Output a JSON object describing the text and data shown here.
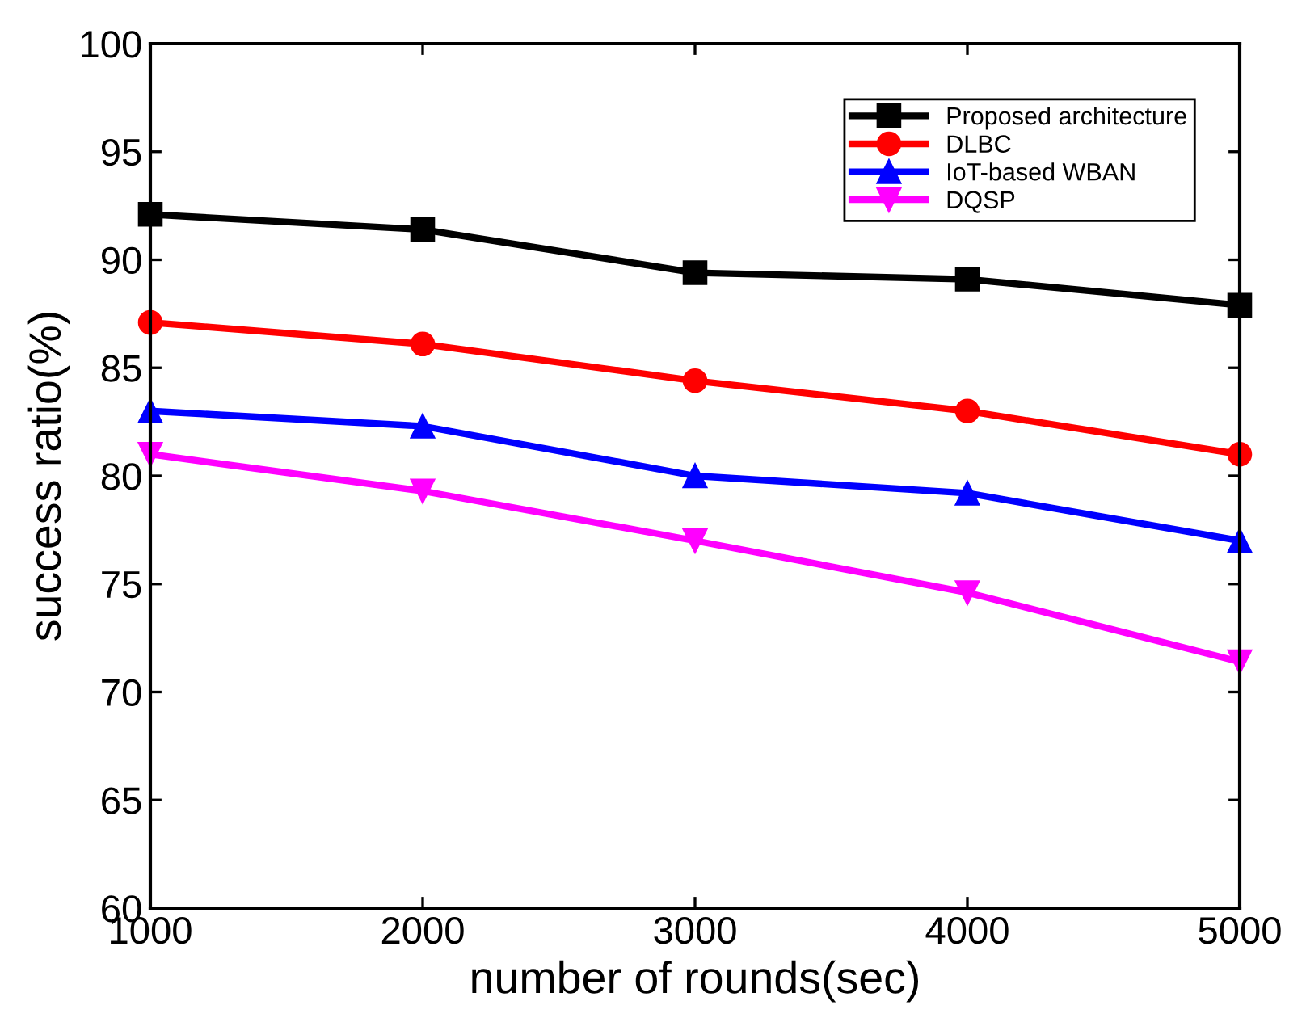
{
  "chart_data": {
    "type": "line",
    "xlabel": "number of rounds(sec)",
    "ylabel": "success ratio(%)",
    "x": [
      1000,
      2000,
      3000,
      4000,
      5000
    ],
    "xlim": [
      1000,
      5000
    ],
    "xticks": [
      1000,
      2000,
      3000,
      4000,
      5000
    ],
    "ylim": [
      60,
      100
    ],
    "yticks": [
      60,
      65,
      70,
      75,
      80,
      85,
      90,
      95,
      100
    ],
    "grid": false,
    "legend": "top right",
    "line_style": "solid",
    "series": [
      {
        "name": "Proposed architecture",
        "color": "#000000",
        "marker": "square",
        "values": [
          92.1,
          91.4,
          89.4,
          89.1,
          87.9
        ]
      },
      {
        "name": "DLBC",
        "color": "#ff0000",
        "marker": "circle",
        "values": [
          87.1,
          86.1,
          84.4,
          83.0,
          81.0
        ]
      },
      {
        "name": "IoT-based WBAN",
        "color": "#0000ff",
        "marker": "triangle",
        "values": [
          83.0,
          82.3,
          80.0,
          79.2,
          77.0
        ]
      },
      {
        "name": "DQSP",
        "color": "#ff00ff",
        "marker": "triangle_down",
        "values": [
          81.0,
          79.3,
          77.0,
          74.6,
          71.4
        ]
      }
    ]
  }
}
